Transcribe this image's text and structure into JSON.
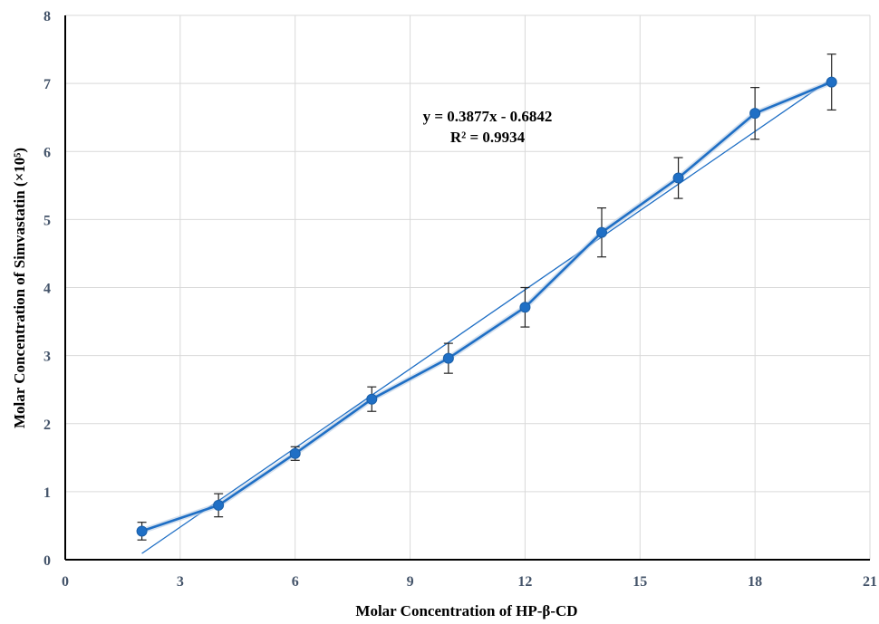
{
  "chart_data": {
    "type": "line",
    "title": "",
    "xlabel": "Molar Concentration of HP-β-CD",
    "ylabel": "Molar Concentration of  Simvastatin (×10⁵)",
    "xlim": [
      0,
      21
    ],
    "ylim": [
      0,
      8
    ],
    "x_ticks": [
      0,
      3,
      6,
      9,
      12,
      15,
      18,
      21
    ],
    "x_tick_labels": [
      "0",
      "3",
      "6",
      "9",
      "12",
      "15",
      "18",
      "21"
    ],
    "y_ticks": [
      0,
      1,
      2,
      3,
      4,
      5,
      6,
      7,
      8
    ],
    "y_tick_labels": [
      "0",
      "1",
      "2",
      "3",
      "4",
      "5",
      "6",
      "7",
      "8"
    ],
    "grid": true,
    "series": [
      {
        "x": [
          2,
          4,
          6,
          8,
          10,
          12,
          14,
          16,
          18,
          20
        ],
        "values": [
          0.42,
          0.8,
          1.56,
          2.36,
          2.96,
          3.71,
          4.81,
          5.61,
          6.56,
          7.02
        ],
        "error": [
          0.13,
          0.17,
          0.1,
          0.18,
          0.22,
          0.29,
          0.36,
          0.3,
          0.38,
          0.41
        ],
        "color": "#1f6fc5"
      }
    ],
    "trendline": {
      "slope": 0.3877,
      "intercept": -0.6842,
      "x_range": [
        2,
        20
      ],
      "color": "#1f6fc5"
    },
    "annotations": {
      "equation": "y = 0.3877x - 0.6842",
      "r_squared": "R² = 0.9934"
    }
  }
}
